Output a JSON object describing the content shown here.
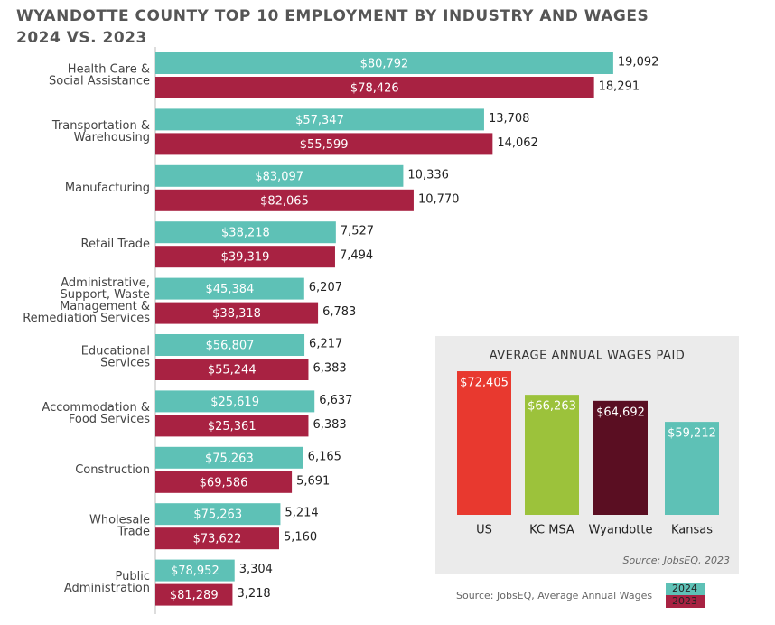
{
  "chart_data": [
    {
      "type": "bar",
      "orientation": "horizontal",
      "title": "WYANDOTTE COUNTY TOP 10 EMPLOYMENT BY INDUSTRY AND WAGES",
      "subtitle": "2024 VS. 2023",
      "categories": [
        [
          "Health Care &",
          "Social Assistance"
        ],
        [
          "Transportation &",
          "Warehousing"
        ],
        [
          "Manufacturing"
        ],
        [
          "Retail Trade"
        ],
        [
          "Administrative,",
          "Support, Waste",
          "Management &",
          "Remediation Services"
        ],
        [
          "Educational",
          "Services"
        ],
        [
          "Accommodation &",
          "Food Services"
        ],
        [
          "Construction"
        ],
        [
          "Wholesale",
          "Trade"
        ],
        [
          "Public",
          "Administration"
        ]
      ],
      "series": [
        {
          "name": "2024",
          "color": "#5ec1b6",
          "values": [
            19092,
            13708,
            10336,
            7527,
            6207,
            6217,
            6637,
            6165,
            5214,
            3304
          ],
          "value_labels": [
            "19,092",
            "13,708",
            "10,336",
            "7,527",
            "6,207",
            "6,217",
            "6,637",
            "6,165",
            "5,214",
            "3,304"
          ],
          "wage_labels": [
            "$80,792",
            "$57,347",
            "$83,097",
            "$38,218",
            "$45,384",
            "$56,807",
            "$25,619",
            "$75,263",
            "$75,263",
            "$78,952"
          ]
        },
        {
          "name": "2023",
          "color": "#a82242",
          "values": [
            18291,
            14062,
            10770,
            7494,
            6783,
            6383,
            6383,
            5691,
            5160,
            3218
          ],
          "value_labels": [
            "18,291",
            "14,062",
            "10,770",
            "7,494",
            "6,783",
            "6,383",
            "6,383",
            "5,691",
            "5,160",
            "3,218"
          ],
          "wage_labels": [
            "$78,426",
            "$55,599",
            "$82,065",
            "$39,319",
            "$38,318",
            "$55,244",
            "$25,361",
            "$69,586",
            "$73,622",
            "$81,289"
          ]
        }
      ],
      "xlim": [
        0,
        20000
      ],
      "legend": "bottom-right",
      "source": "Source: JobsEQ, Average Annual Wages"
    },
    {
      "type": "bar",
      "title": "AVERAGE ANNUAL WAGES PAID",
      "categories": [
        "US",
        "KC MSA",
        "Wyandotte",
        "Kansas"
      ],
      "values": [
        72405,
        66263,
        64692,
        59212
      ],
      "value_labels": [
        "$72,405",
        "$66,263",
        "$64,692",
        "$59,212"
      ],
      "colors": [
        "#e8392f",
        "#9cc23b",
        "#5a0e22",
        "#5ec1b6"
      ],
      "ylim": [
        35000,
        75000
      ],
      "source": "Source: JobsEQ, 2023"
    }
  ]
}
